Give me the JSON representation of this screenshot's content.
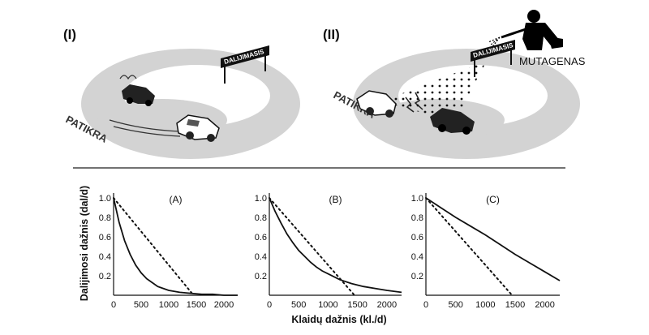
{
  "panels": {
    "left_label": "(I)",
    "right_label": "(II)"
  },
  "illustration": {
    "sign_text": "DALIJIMASIS",
    "track_text": "PATIKRA",
    "mutagen_text": "MUTAGENAS",
    "track_color": "#d3d3d3",
    "icons": [
      "person-icon",
      "spray-gun-icon",
      "car-icon"
    ]
  },
  "axes": {
    "ylabel": "Dalijimosi dažnis (dal/d)",
    "xlabel": "Klaidų dažnis (kl./d)"
  },
  "chart_data": [
    {
      "type": "line",
      "label": "(A)",
      "xlim": [
        0,
        2250
      ],
      "ylim": [
        0,
        1.05
      ],
      "xticks": [
        0,
        500,
        1000,
        1500,
        2000
      ],
      "yticks": [
        0.2,
        0.4,
        0.6,
        0.8,
        1.0
      ],
      "ytick_labels": [
        "0.2",
        "0.4",
        "0.6",
        "0.8",
        "1.0"
      ],
      "series": [
        {
          "style": "solid",
          "x": [
            0,
            100,
            200,
            300,
            400,
            500,
            600,
            700,
            800,
            900,
            1000,
            1200,
            1400,
            1600,
            1800,
            2000,
            2250
          ],
          "y": [
            1.0,
            0.75,
            0.56,
            0.42,
            0.31,
            0.23,
            0.17,
            0.13,
            0.09,
            0.07,
            0.05,
            0.03,
            0.02,
            0.01,
            0.01,
            0.0,
            0.0
          ]
        },
        {
          "style": "dotted",
          "x": [
            0,
            1450
          ],
          "y": [
            1.0,
            0.0
          ]
        }
      ]
    },
    {
      "type": "line",
      "label": "(B)",
      "xlim": [
        0,
        2250
      ],
      "ylim": [
        0,
        1.05
      ],
      "xticks": [
        0,
        500,
        1000,
        1500,
        2000
      ],
      "yticks": [
        0.2,
        0.4,
        0.6,
        0.8,
        1.0
      ],
      "ytick_labels": [
        "0.2",
        "0.4",
        "0.6",
        "0.8",
        "1.0"
      ],
      "series": [
        {
          "style": "solid",
          "x": [
            0,
            100,
            200,
            300,
            400,
            500,
            600,
            700,
            800,
            900,
            1000,
            1200,
            1400,
            1600,
            1800,
            2000,
            2250
          ],
          "y": [
            1.0,
            0.86,
            0.74,
            0.63,
            0.54,
            0.46,
            0.4,
            0.34,
            0.29,
            0.25,
            0.22,
            0.16,
            0.12,
            0.09,
            0.07,
            0.05,
            0.03
          ]
        },
        {
          "style": "dotted",
          "x": [
            0,
            1450
          ],
          "y": [
            1.0,
            0.0
          ]
        }
      ]
    },
    {
      "type": "line",
      "label": "(C)",
      "xlim": [
        0,
        2250
      ],
      "ylim": [
        0,
        1.05
      ],
      "xticks": [
        0,
        500,
        1000,
        1500,
        2000
      ],
      "yticks": [
        0.2,
        0.4,
        0.6,
        0.8,
        1.0
      ],
      "ytick_labels": [
        "0.2",
        "0.4",
        "0.6",
        "0.8",
        "1.0"
      ],
      "series": [
        {
          "style": "solid",
          "x": [
            0,
            250,
            500,
            750,
            1000,
            1250,
            1500,
            1750,
            2000,
            2250
          ],
          "y": [
            1.0,
            0.9,
            0.8,
            0.71,
            0.62,
            0.52,
            0.42,
            0.33,
            0.24,
            0.15
          ]
        },
        {
          "style": "dotted",
          "x": [
            0,
            1450
          ],
          "y": [
            1.0,
            0.0
          ]
        }
      ]
    }
  ]
}
